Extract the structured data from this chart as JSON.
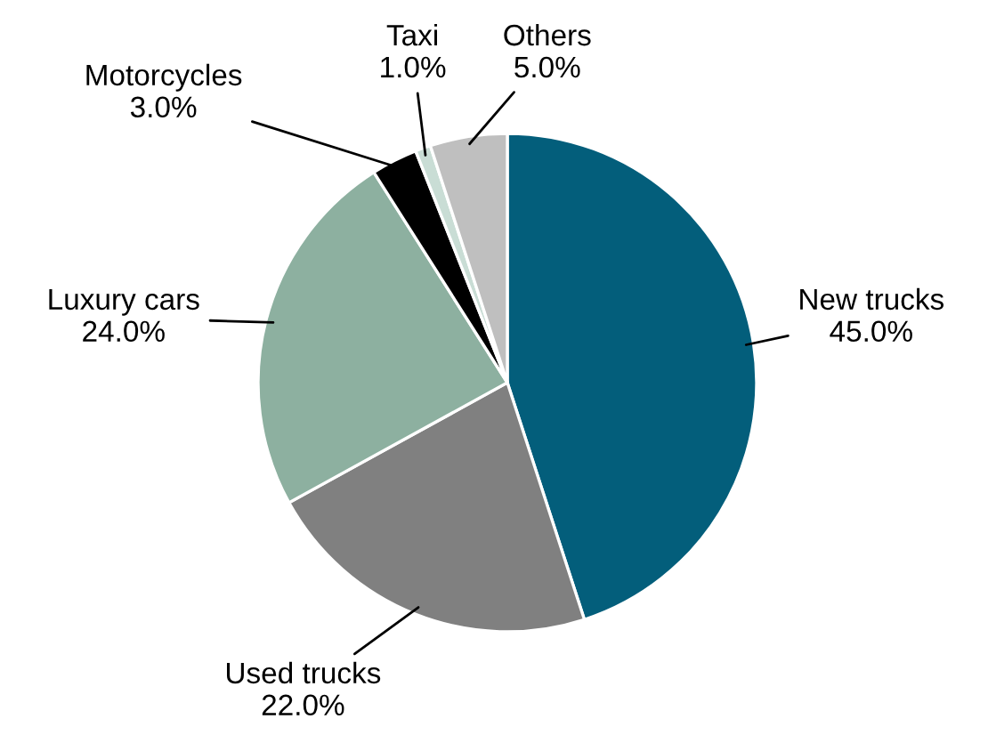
{
  "chart_data": {
    "type": "pie",
    "categories": [
      "New trucks",
      "Used trucks",
      "Luxury cars",
      "Motorcycles",
      "Taxi",
      "Others"
    ],
    "values": [
      45.0,
      22.0,
      24.0,
      3.0,
      1.0,
      5.0
    ],
    "value_labels": [
      "45.0%",
      "22.0%",
      "24.0%",
      "3.0%",
      "1.0%",
      "5.0%"
    ],
    "colors": [
      "#035e7b",
      "#808080",
      "#8db0a0",
      "#000000",
      "#c9ddd5",
      "#bfbfbf"
    ],
    "legend": false
  }
}
